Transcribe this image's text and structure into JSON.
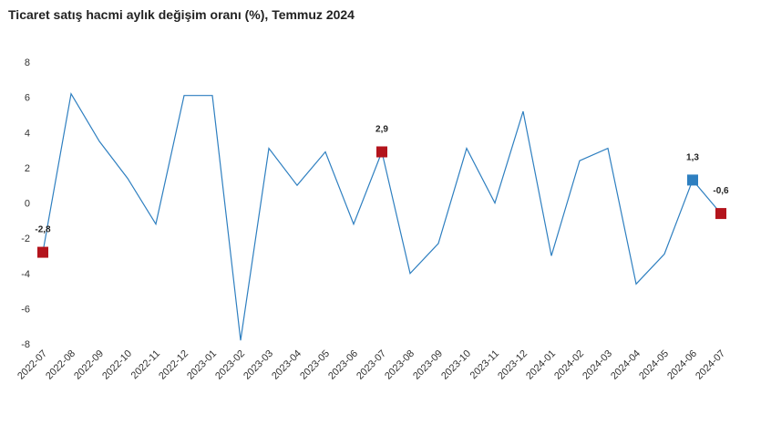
{
  "chart_data": {
    "type": "line",
    "title": "Ticaret satış hacmi aylık değişim oranı (%), Temmuz 2024",
    "xlabel": "",
    "ylabel": "",
    "ylim": [
      -8,
      8
    ],
    "yticks": [
      8,
      6,
      4,
      2,
      0,
      -2,
      -4,
      -6,
      -8
    ],
    "grid": false,
    "categories": [
      "2022-07",
      "2022-08",
      "2022-09",
      "2022-10",
      "2022-11",
      "2022-12",
      "2023-01",
      "2023-02",
      "2023-03",
      "2023-04",
      "2023-05",
      "2023-06",
      "2023-07",
      "2023-08",
      "2023-09",
      "2023-10",
      "2023-11",
      "2023-12",
      "2024-01",
      "2024-02",
      "2024-03",
      "2024-04",
      "2024-05",
      "2024-06",
      "2024-07"
    ],
    "series": [
      {
        "values": [
          -2.8,
          6.2,
          3.5,
          1.4,
          -1.2,
          6.1,
          6.1,
          -7.8,
          3.1,
          1.0,
          2.9,
          -1.2,
          2.9,
          -4.0,
          -2.3,
          3.1,
          0.0,
          5.2,
          -3.0,
          2.4,
          3.1,
          -4.6,
          -2.9,
          1.3,
          -0.6
        ],
        "color": "#2e7fc0"
      }
    ],
    "highlights": [
      {
        "index": 0,
        "label": "-2,8",
        "color": "#b3141c"
      },
      {
        "index": 12,
        "label": "2,9",
        "color": "#b3141c"
      },
      {
        "index": 23,
        "label": "1,3",
        "color": "#2e7fc0"
      },
      {
        "index": 24,
        "label": "-0,6",
        "color": "#b3141c"
      }
    ]
  }
}
